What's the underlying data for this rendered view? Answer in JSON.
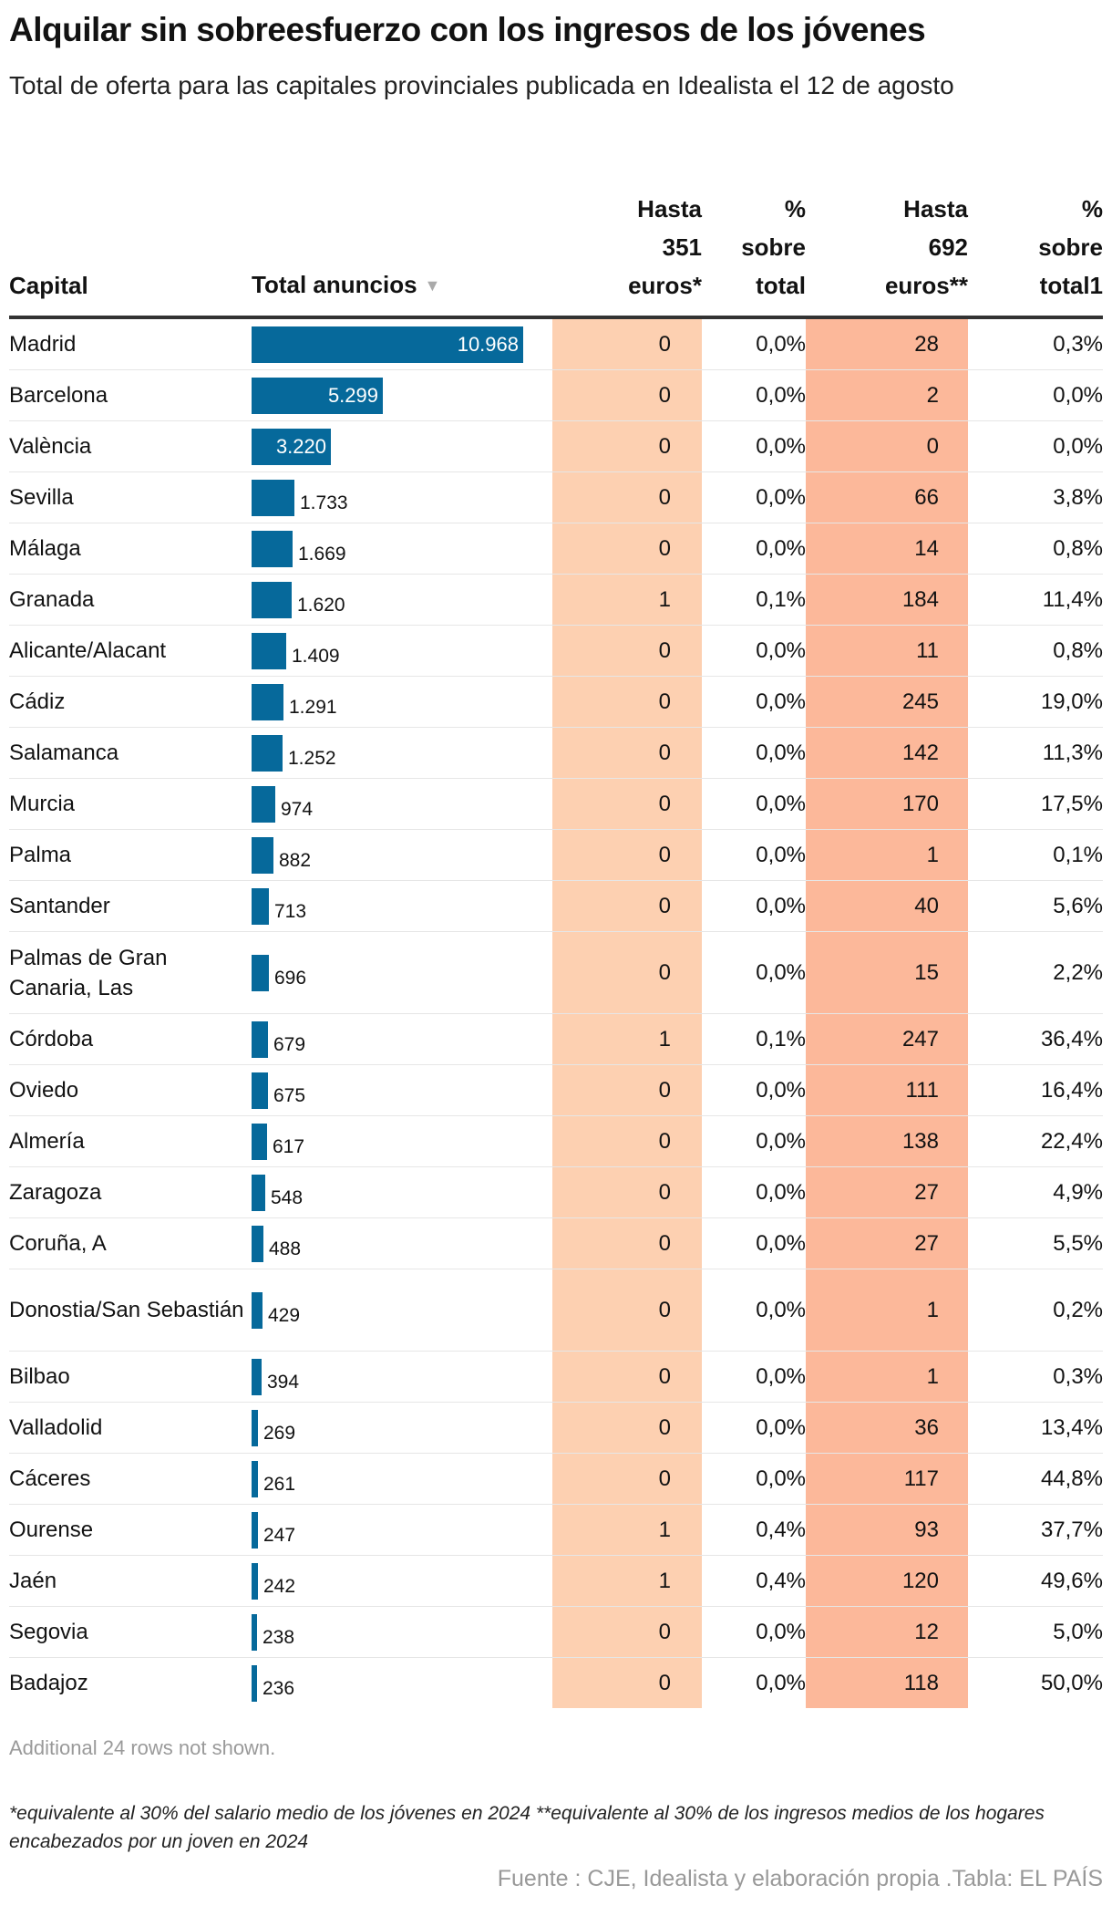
{
  "title": "Alquilar sin sobreesfuerzo con los ingresos de los jóvenes",
  "subtitle": "Total de oferta para las capitales provinciales publicada en Idealista el 12 de agosto",
  "columns": {
    "capital": "Capital",
    "total": "Total anuncios",
    "sort_icon": "▼",
    "h351": [
      "Hasta",
      "351",
      "euros*"
    ],
    "p351": [
      "%",
      "sobre",
      "total"
    ],
    "h692": [
      "Hasta",
      "692",
      "euros**"
    ],
    "p692": [
      "%",
      "sobre",
      "total1"
    ]
  },
  "colors": {
    "bar": "#06699b",
    "col351": "#fdd0b1",
    "col692": "#fcb89a"
  },
  "bar_max": 10968,
  "rows": [
    {
      "capital": "Madrid",
      "total": 10968,
      "total_label": "10.968",
      "h351": "0",
      "p351": "0,0%",
      "h692": "28",
      "p692": "0,3%"
    },
    {
      "capital": "Barcelona",
      "total": 5299,
      "total_label": "5.299",
      "h351": "0",
      "p351": "0,0%",
      "h692": "2",
      "p692": "0,0%"
    },
    {
      "capital": "València",
      "total": 3220,
      "total_label": "3.220",
      "h351": "0",
      "p351": "0,0%",
      "h692": "0",
      "p692": "0,0%"
    },
    {
      "capital": "Sevilla",
      "total": 1733,
      "total_label": "1.733",
      "h351": "0",
      "p351": "0,0%",
      "h692": "66",
      "p692": "3,8%"
    },
    {
      "capital": "Málaga",
      "total": 1669,
      "total_label": "1.669",
      "h351": "0",
      "p351": "0,0%",
      "h692": "14",
      "p692": "0,8%"
    },
    {
      "capital": "Granada",
      "total": 1620,
      "total_label": "1.620",
      "h351": "1",
      "p351": "0,1%",
      "h692": "184",
      "p692": "11,4%"
    },
    {
      "capital": "Alicante/Alacant",
      "total": 1409,
      "total_label": "1.409",
      "h351": "0",
      "p351": "0,0%",
      "h692": "11",
      "p692": "0,8%"
    },
    {
      "capital": "Cádiz",
      "total": 1291,
      "total_label": "1.291",
      "h351": "0",
      "p351": "0,0%",
      "h692": "245",
      "p692": "19,0%"
    },
    {
      "capital": "Salamanca",
      "total": 1252,
      "total_label": "1.252",
      "h351": "0",
      "p351": "0,0%",
      "h692": "142",
      "p692": "11,3%"
    },
    {
      "capital": "Murcia",
      "total": 974,
      "total_label": "974",
      "h351": "0",
      "p351": "0,0%",
      "h692": "170",
      "p692": "17,5%"
    },
    {
      "capital": "Palma",
      "total": 882,
      "total_label": "882",
      "h351": "0",
      "p351": "0,0%",
      "h692": "1",
      "p692": "0,1%"
    },
    {
      "capital": "Santander",
      "total": 713,
      "total_label": "713",
      "h351": "0",
      "p351": "0,0%",
      "h692": "40",
      "p692": "5,6%"
    },
    {
      "capital": "Palmas de Gran Canaria, Las",
      "total": 696,
      "total_label": "696",
      "h351": "0",
      "p351": "0,0%",
      "h692": "15",
      "p692": "2,2%"
    },
    {
      "capital": "Córdoba",
      "total": 679,
      "total_label": "679",
      "h351": "1",
      "p351": "0,1%",
      "h692": "247",
      "p692": "36,4%"
    },
    {
      "capital": "Oviedo",
      "total": 675,
      "total_label": "675",
      "h351": "0",
      "p351": "0,0%",
      "h692": "111",
      "p692": "16,4%"
    },
    {
      "capital": "Almería",
      "total": 617,
      "total_label": "617",
      "h351": "0",
      "p351": "0,0%",
      "h692": "138",
      "p692": "22,4%"
    },
    {
      "capital": "Zaragoza",
      "total": 548,
      "total_label": "548",
      "h351": "0",
      "p351": "0,0%",
      "h692": "27",
      "p692": "4,9%"
    },
    {
      "capital": "Coruña, A",
      "total": 488,
      "total_label": "488",
      "h351": "0",
      "p351": "0,0%",
      "h692": "27",
      "p692": "5,5%"
    },
    {
      "capital": "Donostia/San Sebastián",
      "total": 429,
      "total_label": "429",
      "h351": "0",
      "p351": "0,0%",
      "h692": "1",
      "p692": "0,2%"
    },
    {
      "capital": "Bilbao",
      "total": 394,
      "total_label": "394",
      "h351": "0",
      "p351": "0,0%",
      "h692": "1",
      "p692": "0,3%"
    },
    {
      "capital": "Valladolid",
      "total": 269,
      "total_label": "269",
      "h351": "0",
      "p351": "0,0%",
      "h692": "36",
      "p692": "13,4%"
    },
    {
      "capital": "Cáceres",
      "total": 261,
      "total_label": "261",
      "h351": "0",
      "p351": "0,0%",
      "h692": "117",
      "p692": "44,8%"
    },
    {
      "capital": "Ourense",
      "total": 247,
      "total_label": "247",
      "h351": "1",
      "p351": "0,4%",
      "h692": "93",
      "p692": "37,7%"
    },
    {
      "capital": "Jaén",
      "total": 242,
      "total_label": "242",
      "h351": "1",
      "p351": "0,4%",
      "h692": "120",
      "p692": "49,6%"
    },
    {
      "capital": "Segovia",
      "total": 238,
      "total_label": "238",
      "h351": "0",
      "p351": "0,0%",
      "h692": "12",
      "p692": "5,0%"
    },
    {
      "capital": "Badajoz",
      "total": 236,
      "total_label": "236",
      "h351": "0",
      "p351": "0,0%",
      "h692": "118",
      "p692": "50,0%"
    }
  ],
  "more_rows": "Additional 24 rows not shown.",
  "notes": "*equivalente al 30% del salario medio de los jóvenes en 2024 **equivalente al 30% de los ingresos medios de los hogares encabezados por un joven en 2024",
  "source": "Fuente : CJE, Idealista y elaboración propia .Tabla: EL PAÍS"
}
